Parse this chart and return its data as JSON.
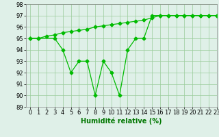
{
  "line1_x": [
    0,
    1,
    3,
    4,
    5,
    6,
    7,
    8,
    9,
    10,
    11,
    12,
    13,
    14,
    15,
    16,
    17,
    18,
    19,
    20,
    21,
    22,
    23
  ],
  "line1_y": [
    95,
    95,
    95,
    94,
    92,
    93,
    93,
    90,
    93,
    92,
    90,
    94,
    95,
    95,
    97,
    97,
    97,
    97,
    97,
    97,
    97,
    97,
    97
  ],
  "line2_x": [
    0,
    1,
    2,
    3,
    4,
    5,
    6,
    7,
    8,
    9,
    10,
    11,
    12,
    13,
    14,
    15,
    16,
    17,
    18,
    19,
    20,
    21,
    22,
    23
  ],
  "line2_y": [
    95,
    95,
    95.2,
    95.3,
    95.5,
    95.6,
    95.7,
    95.8,
    96.0,
    96.1,
    96.2,
    96.3,
    96.4,
    96.5,
    96.6,
    96.8,
    97.0,
    97.0,
    97.0,
    97.0,
    97.0,
    97.0,
    97.0,
    97.0
  ],
  "line_color": "#00bb00",
  "bg_color": "#dff0e8",
  "grid_color": "#99cc99",
  "xlabel": "Humidité relative (%)",
  "ylim": [
    89,
    98
  ],
  "xlim": [
    -0.5,
    23
  ],
  "yticks": [
    89,
    90,
    91,
    92,
    93,
    94,
    95,
    96,
    97,
    98
  ],
  "xticks": [
    0,
    1,
    2,
    3,
    4,
    5,
    6,
    7,
    8,
    9,
    10,
    11,
    12,
    13,
    14,
    15,
    16,
    17,
    18,
    19,
    20,
    21,
    22,
    23
  ],
  "xlabel_color": "#007700",
  "xlabel_fontsize": 7,
  "tick_fontsize": 6,
  "marker": "D",
  "markersize": 2.5,
  "linewidth": 0.9
}
